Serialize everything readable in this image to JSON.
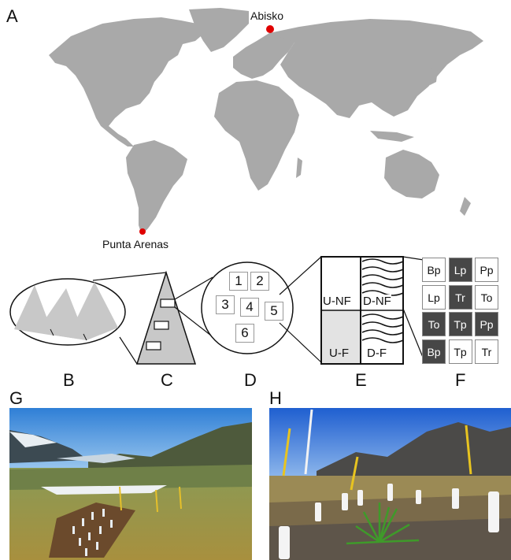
{
  "panels": {
    "a": "A",
    "b": "B",
    "c": "C",
    "d": "D",
    "e": "E",
    "f": "F",
    "g": "G",
    "h": "H"
  },
  "map": {
    "site_north": "Abisko",
    "site_south": "Punta Arenas",
    "land_color": "#a9a9a9",
    "site_color": "#e00000"
  },
  "plots": [
    "1",
    "2",
    "3",
    "4",
    "5",
    "6"
  ],
  "treatments": {
    "u_nf": "U-NF",
    "d_nf": "D-NF",
    "u_f": "U-F",
    "d_f": "D-F"
  },
  "species_grid": [
    [
      {
        "label": "Bp",
        "dark": false
      },
      {
        "label": "Lp",
        "dark": true
      },
      {
        "label": "Pp",
        "dark": false
      }
    ],
    [
      {
        "label": "Lp",
        "dark": false
      },
      {
        "label": "Tr",
        "dark": true
      },
      {
        "label": "To",
        "dark": false
      }
    ],
    [
      {
        "label": "To",
        "dark": true
      },
      {
        "label": "Tp",
        "dark": true
      },
      {
        "label": "Pp",
        "dark": true
      }
    ],
    [
      {
        "label": "Bp",
        "dark": true
      },
      {
        "label": "Tp",
        "dark": false
      },
      {
        "label": "Tr",
        "dark": false
      }
    ]
  ]
}
